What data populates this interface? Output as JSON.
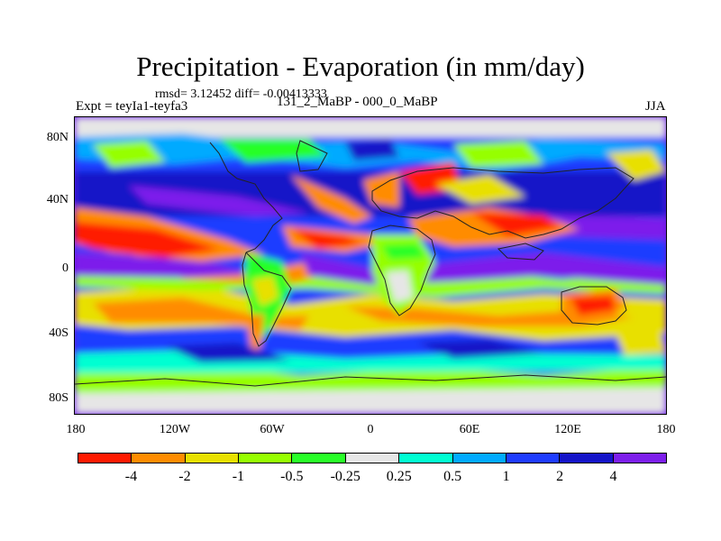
{
  "title": "Precipitation - Evaporation (in mm/day)",
  "stats_line": "rmsd= 3.12452 diff= -0.00413333",
  "experiment_label": "Expt = teyIa1-teyfa3",
  "experiment_ids": "131_2_MaBP - 000_0_MaBP",
  "season": "JJA",
  "lat_labels": [
    "80N",
    "40N",
    "0",
    "40S",
    "80S"
  ],
  "lon_labels": [
    "180",
    "120W",
    "60W",
    "0",
    "60E",
    "120E",
    "180"
  ],
  "colorbar": {
    "colors": [
      "#ff1a00",
      "#ff8c00",
      "#e8e000",
      "#96ff00",
      "#28ff28",
      "#e6e6e6",
      "#00ffd2",
      "#00aaff",
      "#1e3cff",
      "#1414c8",
      "#7d1eeb"
    ],
    "labels": [
      "-4",
      "-2",
      "-1",
      "-0.5",
      "-0.25",
      "0.25",
      "0.5",
      "1",
      "2",
      "4"
    ]
  }
}
